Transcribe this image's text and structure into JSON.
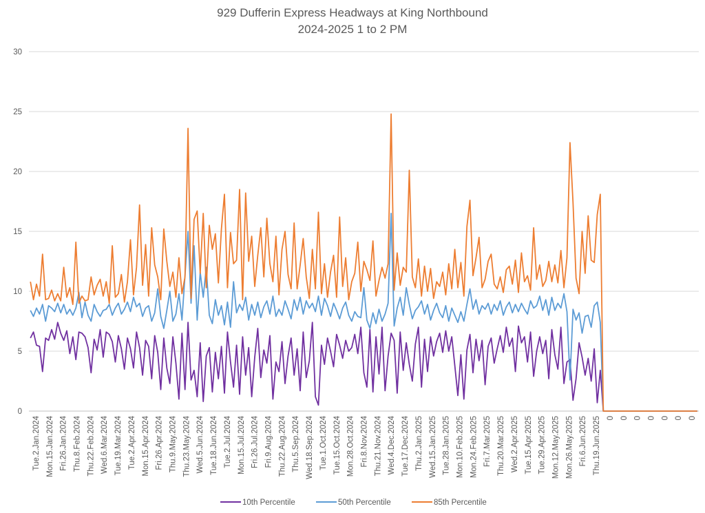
{
  "chart_data": {
    "type": "line",
    "title": "929 Dufferin Express Headways at King Northbound",
    "subtitle": "2024-2025 1 to 2 PM",
    "xlabel": "",
    "ylabel": "",
    "ylim": [
      0,
      30
    ],
    "yticks": [
      "0",
      "5",
      "10",
      "15",
      "20",
      "25",
      "30"
    ],
    "ytick_values": [
      0,
      5,
      10,
      15,
      20,
      25,
      30
    ],
    "grid": true,
    "legend_position": "bottom",
    "x_labels": [
      "Tue.2.Jan.2024",
      "Mon.15.Jan.2024",
      "Fri.26.Jan.2024",
      "Thu.8.Feb.2024",
      "Thu.22.Feb.2024",
      "Wed.6.Mar.2024",
      "Tue.19.Mar.2024",
      "Tue.2.Apr.2024",
      "Mon.15.Apr.2024",
      "Fri.26.Apr.2024",
      "Thu.9.May.2024",
      "Thu.23.May.2024",
      "Wed.5.Jun.2024",
      "Tue.18.Jun.2024",
      "Tue.2.Jul.2024",
      "Mon.15.Jul.2024",
      "Fri.26.Jul.2024",
      "Fri.9.Aug.2024",
      "Thu.22.Aug.2024",
      "Thu.5.Sep.2024",
      "Wed.18.Sep.2024",
      "Tue.1.Oct.2024",
      "Tue.15.Oct.2024",
      "Mon.28.Oct.2024",
      "Fri.8.Nov.2024",
      "Thu.21.Nov.2024",
      "Wed.4.Dec.2024",
      "Tue.17.Dec.2024",
      "Thu.2.Jan.2025",
      "Wed.15.Jan.2025",
      "Tue.28.Jan.2025",
      "Mon.10.Feb.2025",
      "Mon.24.Feb.2025",
      "Fri.7.Mar.2025",
      "Thu.20.Mar.2025",
      "Wed.2.Apr.2025",
      "Tue.15.Apr.2025",
      "Tue.29.Apr.2025",
      "Mon.12.May.2025",
      "Mon.26.May.2025",
      "Fri.6.Jun.2025",
      "Thu.19.Jun.2025",
      "0",
      "0",
      "0",
      "0",
      "0",
      "0",
      "0"
    ],
    "trailing_zero_points": 32,
    "series": [
      {
        "name": "10th Percentile",
        "color": "#7030a0",
        "values": [
          6.1,
          6.6,
          5.5,
          5.4,
          3.3,
          6.1,
          5.9,
          6.8,
          6.0,
          7.4,
          6.5,
          5.9,
          6.7,
          4.8,
          6.2,
          4.3,
          6.6,
          6.5,
          6.2,
          5.3,
          3.2,
          6.0,
          5.1,
          6.8,
          4.5,
          6.6,
          6.4,
          5.8,
          4.1,
          6.3,
          5.2,
          3.5,
          6.1,
          5.2,
          3.6,
          6.6,
          5.3,
          3.0,
          5.9,
          5.4,
          2.7,
          6.3,
          4.9,
          1.8,
          6.1,
          3.6,
          2.3,
          6.2,
          4.0,
          1.0,
          6.5,
          1.8,
          7.4,
          2.6,
          3.4,
          1.2,
          5.7,
          0.8,
          4.6,
          5.3,
          1.6,
          4.9,
          2.7,
          5.4,
          1.5,
          6.6,
          4.1,
          2.0,
          5.5,
          1.4,
          6.2,
          3.0,
          5.3,
          1.2,
          4.5,
          6.9,
          2.8,
          5.1,
          4.0,
          6.3,
          1.0,
          4.1,
          3.3,
          5.8,
          2.3,
          4.6,
          6.1,
          3.0,
          5.2,
          1.7,
          6.6,
          2.8,
          4.2,
          7.4,
          1.2,
          0.5,
          5.5,
          3.9,
          6.1,
          5.0,
          3.7,
          6.4,
          5.5,
          4.4,
          5.9,
          5.0,
          5.3,
          6.4,
          4.8,
          7.0,
          3.2,
          2.0,
          6.8,
          1.6,
          6.2,
          3.1,
          7.0,
          1.7,
          4.6,
          6.5,
          5.9,
          1.5,
          6.6,
          3.4,
          5.7,
          3.9,
          2.5,
          5.6,
          7.0,
          2.0,
          6.0,
          3.3,
          6.2,
          4.6,
          5.8,
          6.5,
          4.9,
          6.7,
          5.0,
          6.2,
          3.8,
          1.3,
          4.7,
          1.0,
          5.1,
          6.4,
          3.2,
          6.0,
          4.2,
          5.9,
          2.2,
          5.4,
          6.1,
          4.0,
          5.2,
          6.3,
          4.9,
          7.0,
          5.4,
          6.1,
          3.3,
          7.1,
          5.7,
          6.2,
          4.1,
          6.6,
          2.9,
          5.0,
          6.2,
          4.8,
          5.9,
          2.7,
          6.8,
          4.7,
          3.5,
          7.0,
          2.3,
          4.1,
          4.3,
          0.9,
          2.7,
          5.7,
          4.5,
          3.0,
          4.4,
          2.5,
          5.2,
          0.7,
          3.4
        ]
      },
      {
        "name": "50th Percentile",
        "color": "#5b9bd5",
        "values": [
          8.4,
          7.9,
          8.6,
          8.1,
          8.9,
          7.5,
          8.8,
          8.6,
          8.3,
          9.0,
          8.2,
          8.9,
          8.1,
          8.5,
          8.0,
          8.6,
          9.9,
          7.8,
          9.1,
          8.0,
          7.5,
          8.9,
          8.3,
          7.9,
          8.4,
          8.5,
          8.9,
          8.0,
          8.6,
          9.0,
          8.1,
          8.5,
          9.1,
          8.3,
          9.5,
          8.7,
          9.0,
          7.9,
          8.6,
          8.8,
          7.5,
          8.2,
          10.2,
          7.9,
          6.9,
          8.4,
          10.0,
          7.5,
          8.1,
          9.8,
          7.6,
          11.3,
          15.0,
          9.0,
          13.8,
          7.6,
          11.6,
          9.5,
          12.0,
          8.0,
          7.3,
          9.3,
          8.0,
          8.8,
          7.2,
          9.1,
          7.0,
          10.8,
          8.2,
          8.9,
          8.4,
          9.5,
          7.6,
          8.9,
          8.0,
          9.1,
          7.8,
          8.7,
          9.2,
          8.1,
          9.6,
          7.9,
          8.5,
          8.0,
          9.2,
          8.5,
          7.7,
          9.3,
          8.4,
          9.5,
          8.1,
          9.2,
          8.6,
          9.0,
          8.3,
          9.6,
          8.0,
          9.4,
          8.8,
          7.9,
          9.0,
          8.4,
          7.7,
          8.6,
          9.1,
          8.0,
          7.5,
          8.3,
          7.9,
          7.8,
          10.3,
          7.6,
          6.9,
          8.2,
          7.3,
          8.5,
          7.5,
          8.1,
          9.0,
          16.5,
          7.1,
          8.6,
          9.5,
          8.0,
          10.3,
          8.9,
          7.7,
          8.4,
          8.7,
          9.2,
          8.1,
          8.9,
          7.6,
          8.4,
          9.0,
          8.2,
          7.8,
          8.8,
          7.5,
          8.6,
          8.0,
          7.4,
          8.3,
          7.5,
          8.9,
          10.2,
          8.5,
          9.3,
          8.1,
          8.8,
          8.5,
          9.0,
          8.1,
          8.9,
          8.4,
          9.2,
          8.0,
          8.7,
          9.1,
          8.2,
          8.9,
          8.3,
          9.0,
          8.5,
          8.1,
          9.2,
          8.6,
          8.8,
          9.6,
          8.4,
          9.3,
          8.0,
          9.5,
          8.4,
          9.0,
          8.6,
          9.8,
          8.3,
          2.6,
          8.5,
          7.6,
          8.2,
          6.5,
          7.9,
          8.0,
          7.0,
          8.8,
          9.1,
          7.4
        ]
      },
      {
        "name": "85th Percentile",
        "color": "#ed7d31",
        "values": [
          10.8,
          9.3,
          10.6,
          9.6,
          13.1,
          9.3,
          9.4,
          10.1,
          9.2,
          9.8,
          9.2,
          12.0,
          9.5,
          10.3,
          8.9,
          14.1,
          9.0,
          9.6,
          9.2,
          9.3,
          11.2,
          9.7,
          10.5,
          11.0,
          9.6,
          10.8,
          9.0,
          13.8,
          9.5,
          9.8,
          11.4,
          9.1,
          10.8,
          14.3,
          9.7,
          12.0,
          17.2,
          10.5,
          13.9,
          9.6,
          15.3,
          12.2,
          11.2,
          9.3,
          15.2,
          12.5,
          10.4,
          11.6,
          9.5,
          12.8,
          9.8,
          11.2,
          23.6,
          9.4,
          16.0,
          16.7,
          11.5,
          16.5,
          10.3,
          15.5,
          13.5,
          14.8,
          10.7,
          15.2,
          18.1,
          10.3,
          14.9,
          12.3,
          12.6,
          18.5,
          9.3,
          18.2,
          12.5,
          14.6,
          10.4,
          13.0,
          15.3,
          11.2,
          16.1,
          12.3,
          10.8,
          14.6,
          9.7,
          13.5,
          15.0,
          11.4,
          10.2,
          15.7,
          10.2,
          12.2,
          14.4,
          11.2,
          9.4,
          13.5,
          10.2,
          16.6,
          9.8,
          12.3,
          9.5,
          11.6,
          13.0,
          9.5,
          16.2,
          10.4,
          12.8,
          9.3,
          10.8,
          11.5,
          14.1,
          10.0,
          12.5,
          11.8,
          10.9,
          14.2,
          9.6,
          10.9,
          12.0,
          11.1,
          12.3,
          24.8,
          10.1,
          13.2,
          10.5,
          12.0,
          11.6,
          20.1,
          11.2,
          10.3,
          12.7,
          9.6,
          12.1,
          10.0,
          11.9,
          9.4,
          10.8,
          10.4,
          11.6,
          9.7,
          12.3,
          10.2,
          13.5,
          10.3,
          12.4,
          9.6,
          15.4,
          17.6,
          11.3,
          12.8,
          14.5,
          10.3,
          11.0,
          12.5,
          13.1,
          10.6,
          10.2,
          11.2,
          9.9,
          11.8,
          12.1,
          10.6,
          12.6,
          9.9,
          13.2,
          10.8,
          11.3,
          10.1,
          15.3,
          11.0,
          12.2,
          10.4,
          10.9,
          12.5,
          10.8,
          12.2,
          10.7,
          13.4,
          10.3,
          12.8,
          22.4,
          17.4,
          11.1,
          9.8,
          15.0,
          11.5,
          16.3,
          12.6,
          12.4,
          16.4,
          18.1
        ]
      }
    ]
  }
}
